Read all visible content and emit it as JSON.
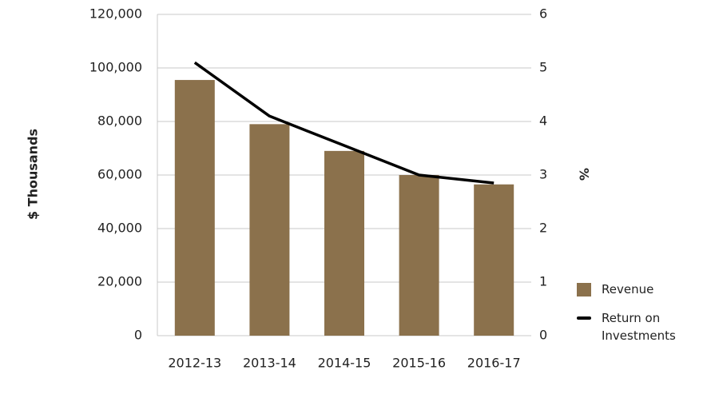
{
  "chart_data": {
    "type": "bar",
    "categories": [
      "2012-13",
      "2013-14",
      "2014-15",
      "2015-16",
      "2016-17"
    ],
    "series": [
      {
        "name": "Revenue",
        "type": "bar",
        "color": "#8b714c",
        "values": [
          95500,
          79000,
          69000,
          60000,
          56500
        ]
      },
      {
        "name": "Return on Investments",
        "type": "line",
        "axis": "y2",
        "color": "#000000",
        "values": [
          5.1,
          4.1,
          3.55,
          3.0,
          2.85
        ]
      }
    ],
    "y_label": "$ Thousands",
    "y2_label": "%",
    "ylim": [
      0,
      120000
    ],
    "yticks": [
      0,
      {
        "value": 20000,
        "label": "20,000"
      },
      {
        "value": 40000,
        "label": "40,000"
      },
      {
        "value": 60000,
        "label": "60,000"
      },
      {
        "value": 80000,
        "label": "80,000"
      },
      {
        "value": 100000,
        "label": "100,000"
      },
      {
        "value": 120000,
        "label": "120,000"
      }
    ],
    "y2lim": [
      0,
      6
    ],
    "y2ticks": [
      0,
      1,
      2,
      3,
      4,
      5,
      6
    ],
    "grid": true,
    "legend": "bottom-right"
  }
}
